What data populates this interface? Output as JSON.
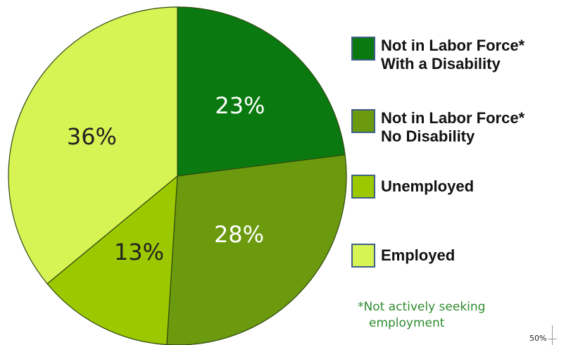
{
  "chart_data": {
    "type": "pie",
    "slices": [
      {
        "label": "Not in Labor Force*\nWith a Disability",
        "value": 23,
        "display": "23%",
        "color": "#0a7a10",
        "label_color": "#ffffff"
      },
      {
        "label": "Not in Labor Force*\nNo Disability",
        "value": 28,
        "display": "28%",
        "color": "#6b9a0e",
        "label_color": "#ffffff"
      },
      {
        "label": "Unemployed",
        "value": 13,
        "display": "13%",
        "color": "#9cc800",
        "label_color": "#222222"
      },
      {
        "label": "Employed",
        "value": 36,
        "display": "36%",
        "color": "#d8f354",
        "label_color": "#222222"
      }
    ],
    "legend_position": "right",
    "footnote": {
      "line1": "*Not actively seeking",
      "line2": "employment"
    }
  },
  "status_bar": {
    "zoom": "50%"
  }
}
